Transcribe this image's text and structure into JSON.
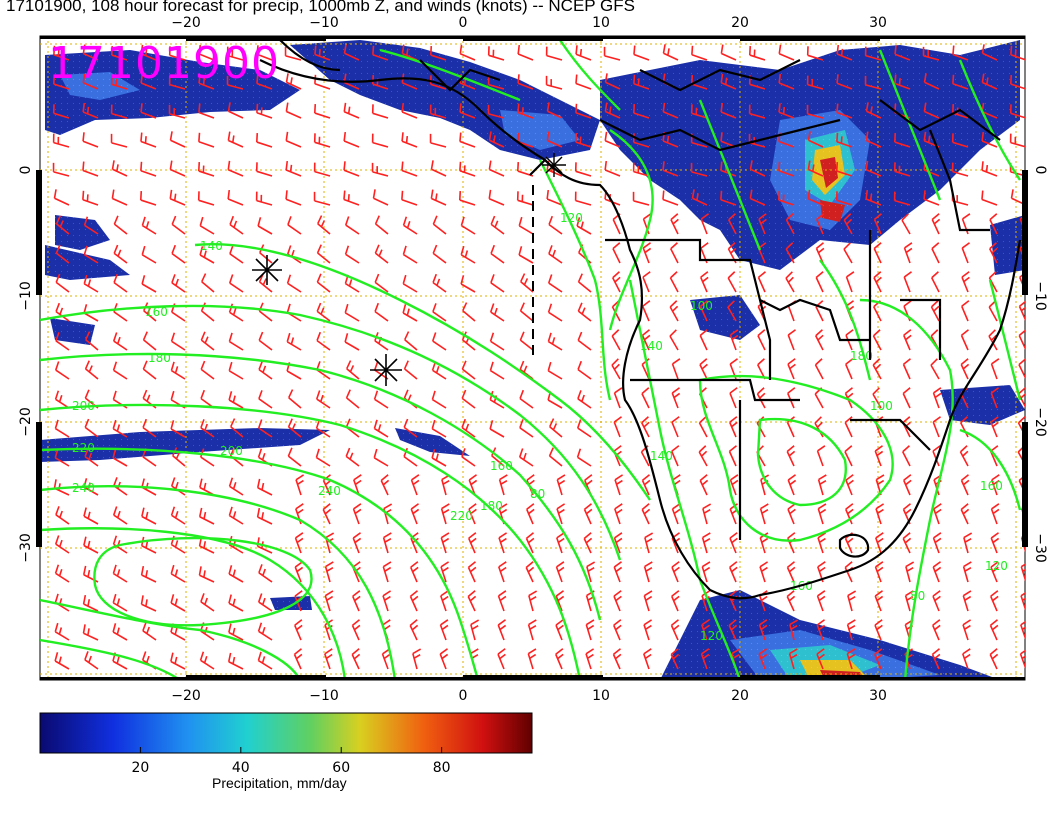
{
  "title": "17101900, 108 hour forecast for precip, 1000mb Z, and winds (knots) -- NCEP GFS",
  "stamp": "17101900",
  "map": {
    "lon_ticks": [
      "−20",
      "−10",
      "0",
      "10",
      "20",
      "30"
    ],
    "lat_ticks": [
      "0",
      "−10",
      "−20",
      "−30"
    ],
    "contour_labels": [
      "140",
      "160",
      "180",
      "200",
      "220",
      "240",
      "240",
      "220",
      "200",
      "180",
      "160",
      "120",
      "80",
      "100",
      "140",
      "120",
      "160",
      "180",
      "100",
      "80",
      "120",
      "140",
      "160"
    ],
    "colors": {
      "contour": "#22ee22",
      "barb": "#ff2020",
      "coast": "#000000",
      "grid": "#e0b000",
      "stamp": "#ff00ff"
    }
  },
  "colorbar": {
    "ticks": [
      "20",
      "40",
      "60",
      "80"
    ],
    "label": "Precipitation, mm/day"
  }
}
